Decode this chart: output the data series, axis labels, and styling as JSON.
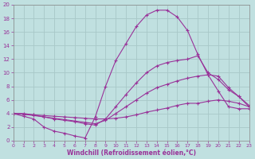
{
  "xlabel": "Windchill (Refroidissement éolien,°C)",
  "background_color": "#c0e0e0",
  "grid_color": "#b0d0d0",
  "line_color": "#993399",
  "xlim": [
    0,
    23
  ],
  "ylim": [
    0,
    20
  ],
  "xticks": [
    0,
    1,
    2,
    3,
    4,
    5,
    6,
    7,
    8,
    9,
    10,
    11,
    12,
    13,
    14,
    15,
    16,
    17,
    18,
    19,
    20,
    21,
    22,
    23
  ],
  "yticks": [
    0,
    2,
    4,
    6,
    8,
    10,
    12,
    14,
    16,
    18,
    20
  ],
  "line1_x": [
    0,
    1,
    2,
    3,
    4,
    5,
    6,
    7,
    8,
    9,
    10,
    11,
    12,
    13,
    14,
    15,
    16,
    17,
    18,
    19,
    20,
    21,
    22,
    23
  ],
  "line1_y": [
    4.0,
    3.6,
    3.2,
    2.0,
    1.4,
    1.1,
    0.7,
    0.4,
    3.5,
    8.0,
    11.8,
    14.3,
    16.8,
    18.5,
    19.2,
    19.2,
    18.2,
    16.2,
    12.7,
    9.7,
    7.3,
    5.0,
    4.7,
    4.7
  ],
  "line2_x": [
    0,
    1,
    2,
    3,
    4,
    5,
    6,
    7,
    8,
    9,
    10,
    11,
    12,
    13,
    14,
    15,
    16,
    17,
    18,
    19,
    20,
    21,
    22,
    23
  ],
  "line2_y": [
    4.0,
    4.0,
    3.8,
    3.5,
    3.2,
    3.0,
    2.8,
    2.5,
    2.3,
    3.2,
    5.0,
    6.8,
    8.5,
    10.0,
    11.0,
    11.5,
    11.8,
    12.0,
    12.5,
    10.0,
    9.0,
    7.5,
    6.5,
    5.0
  ],
  "line3_x": [
    0,
    1,
    2,
    3,
    4,
    5,
    6,
    7,
    8,
    9,
    10,
    11,
    12,
    13,
    14,
    15,
    16,
    17,
    18,
    19,
    20,
    21,
    22,
    23
  ],
  "line3_y": [
    4.0,
    3.9,
    3.7,
    3.5,
    3.3,
    3.1,
    2.9,
    2.7,
    2.5,
    3.0,
    4.0,
    5.0,
    6.0,
    7.0,
    7.8,
    8.3,
    8.8,
    9.2,
    9.5,
    9.7,
    9.5,
    7.8,
    6.5,
    5.2
  ],
  "line4_x": [
    0,
    1,
    2,
    3,
    4,
    5,
    6,
    7,
    8,
    9,
    10,
    11,
    12,
    13,
    14,
    15,
    16,
    17,
    18,
    19,
    20,
    21,
    22,
    23
  ],
  "line4_y": [
    4.0,
    3.9,
    3.8,
    3.7,
    3.6,
    3.5,
    3.4,
    3.3,
    3.2,
    3.2,
    3.3,
    3.5,
    3.8,
    4.2,
    4.5,
    4.8,
    5.2,
    5.5,
    5.5,
    5.8,
    6.0,
    5.8,
    5.5,
    5.0
  ]
}
